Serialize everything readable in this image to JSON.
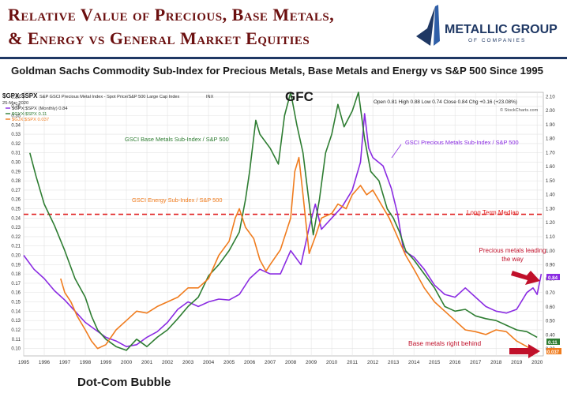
{
  "header": {
    "title_line1": "Relative Value of Precious, Base Metals,",
    "title_line2": "& Energy vs General Market Equities",
    "logo_name": "METALLIC GROUP",
    "logo_sub": "OF COMPANIES",
    "logo_icon": "metallic-group-logo-icon",
    "subtitle": "Goldman Sachs Commodity Sub-Index for Precious Metals, Base Metals and Energy vs S&P 500 Since 1995"
  },
  "chart_meta": {
    "symbol": "$GPX:$SPX",
    "symbol_desc": "S&P GSCI Precious Metal Index - Spot Price/S&P 500 Large Cap Index",
    "exchange": "INX",
    "date": "25-Mar-2020",
    "ohlc": "Open 0.81  High 0.88  Low 0.74  Close 0.84  Chg +0.16 (+23.08%)",
    "credit": "© StockCharts.com",
    "legend": [
      {
        "text": "$GPX:$SPX (Monthly) 0.84",
        "color": "#8a2be2"
      },
      {
        "text": "$GYX:$SPX 0.11",
        "color": "#2e7d32"
      },
      {
        "text": "$GJX:$SPX 0.037",
        "color": "#f07c1e"
      }
    ],
    "colors": {
      "precious": "#8a2be2",
      "base": "#2e7d32",
      "energy": "#f07c1e",
      "median": "#e02020",
      "arrow": "#c0102a",
      "title": "#6b0f0f",
      "navy": "#1f3864"
    }
  },
  "annotations": {
    "gfc": "GFC",
    "dotcom": "Dot-Com Bubble",
    "base_label": "GSCI Base Metals Sub-Index / S&P 500",
    "energy_label": "GSCI Energy Sub-Index / S&P 500",
    "precious_label": "GSCI Precious Metals Sub-Index / S&P 500",
    "median": "Long Term Median",
    "precious_lead": "Precious metals leading the way",
    "base_behind": "Base metals right behind",
    "last_precious": "0.84",
    "last_base": "0.11",
    "last_energy": "0.037"
  },
  "chart_data": {
    "type": "line",
    "x_labels": [
      "1995",
      "1996",
      "1997",
      "1998",
      "1999",
      "2000",
      "2001",
      "2002",
      "2003",
      "2004",
      "2005",
      "2006",
      "2007",
      "2008",
      "2009",
      "2010",
      "2011",
      "2012",
      "2013",
      "2014",
      "2015",
      "2016",
      "2017",
      "2018",
      "2019",
      "2020"
    ],
    "xlim": [
      1995,
      2020.3
    ],
    "left_axis": {
      "ticks": [
        0.1,
        0.11,
        0.12,
        0.13,
        0.14,
        0.15,
        0.16,
        0.17,
        0.18,
        0.19,
        0.2,
        0.21,
        0.22,
        0.23,
        0.24,
        0.25,
        0.26,
        0.27,
        0.28,
        0.29,
        0.3,
        0.31,
        0.32,
        0.33,
        0.34,
        0.35,
        0.36,
        0.37
      ]
    },
    "right_axis": {
      "ticks": [
        0.3,
        0.4,
        0.5,
        0.6,
        0.7,
        0.8,
        0.9,
        1.0,
        1.1,
        1.2,
        1.3,
        1.4,
        1.5,
        1.6,
        1.7,
        1.8,
        1.9,
        2.0,
        2.1
      ]
    },
    "grid": true,
    "median_level": 0.244,
    "series": [
      {
        "name": "$GPX:$SPX (Monthly)",
        "color": "#8a2be2",
        "points": [
          [
            1995.0,
            0.2
          ],
          [
            1995.5,
            0.185
          ],
          [
            1996.0,
            0.175
          ],
          [
            1996.5,
            0.162
          ],
          [
            1997.0,
            0.152
          ],
          [
            1997.5,
            0.14
          ],
          [
            1998.0,
            0.128
          ],
          [
            1998.5,
            0.12
          ],
          [
            1999.0,
            0.112
          ],
          [
            1999.5,
            0.108
          ],
          [
            2000.0,
            0.102
          ],
          [
            2000.5,
            0.104
          ],
          [
            2001.0,
            0.112
          ],
          [
            2001.5,
            0.118
          ],
          [
            2002.0,
            0.128
          ],
          [
            2002.5,
            0.142
          ],
          [
            2003.0,
            0.15
          ],
          [
            2003.5,
            0.145
          ],
          [
            2004.0,
            0.15
          ],
          [
            2004.5,
            0.153
          ],
          [
            2005.0,
            0.152
          ],
          [
            2005.5,
            0.158
          ],
          [
            2006.0,
            0.175
          ],
          [
            2006.5,
            0.185
          ],
          [
            2007.0,
            0.18
          ],
          [
            2007.5,
            0.18
          ],
          [
            2008.0,
            0.205
          ],
          [
            2008.5,
            0.19
          ],
          [
            2008.9,
            0.23
          ],
          [
            2009.2,
            0.255
          ],
          [
            2009.5,
            0.228
          ],
          [
            2010.0,
            0.24
          ],
          [
            2010.5,
            0.252
          ],
          [
            2011.0,
            0.27
          ],
          [
            2011.4,
            0.3
          ],
          [
            2011.6,
            0.352
          ],
          [
            2011.8,
            0.315
          ],
          [
            2012.0,
            0.305
          ],
          [
            2012.5,
            0.296
          ],
          [
            2012.9,
            0.272
          ],
          [
            2013.2,
            0.245
          ],
          [
            2013.5,
            0.205
          ],
          [
            2014.0,
            0.198
          ],
          [
            2014.5,
            0.185
          ],
          [
            2015.0,
            0.168
          ],
          [
            2015.5,
            0.158
          ],
          [
            2016.0,
            0.155
          ],
          [
            2016.5,
            0.165
          ],
          [
            2017.0,
            0.155
          ],
          [
            2017.5,
            0.145
          ],
          [
            2018.0,
            0.14
          ],
          [
            2018.5,
            0.138
          ],
          [
            2019.0,
            0.142
          ],
          [
            2019.5,
            0.16
          ],
          [
            2019.8,
            0.165
          ],
          [
            2020.0,
            0.158
          ],
          [
            2020.2,
            0.18
          ]
        ]
      },
      {
        "name": "$GYX:$SPX",
        "color": "#2e7d32",
        "points": [
          [
            1995.3,
            0.31
          ],
          [
            1995.6,
            0.285
          ],
          [
            1996.0,
            0.255
          ],
          [
            1996.5,
            0.232
          ],
          [
            1997.0,
            0.205
          ],
          [
            1997.5,
            0.175
          ],
          [
            1998.0,
            0.155
          ],
          [
            1998.3,
            0.135
          ],
          [
            1998.6,
            0.12
          ],
          [
            1999.0,
            0.11
          ],
          [
            1999.5,
            0.102
          ],
          [
            2000.0,
            0.098
          ],
          [
            2000.5,
            0.11
          ],
          [
            2001.0,
            0.102
          ],
          [
            2001.5,
            0.112
          ],
          [
            2002.0,
            0.12
          ],
          [
            2002.5,
            0.132
          ],
          [
            2003.0,
            0.145
          ],
          [
            2003.5,
            0.155
          ],
          [
            2004.0,
            0.178
          ],
          [
            2004.5,
            0.19
          ],
          [
            2005.0,
            0.205
          ],
          [
            2005.5,
            0.225
          ],
          [
            2005.8,
            0.26
          ],
          [
            2006.0,
            0.29
          ],
          [
            2006.3,
            0.345
          ],
          [
            2006.5,
            0.33
          ],
          [
            2007.0,
            0.315
          ],
          [
            2007.4,
            0.298
          ],
          [
            2007.7,
            0.35
          ],
          [
            2008.0,
            0.375
          ],
          [
            2008.3,
            0.34
          ],
          [
            2008.6,
            0.31
          ],
          [
            2008.9,
            0.256
          ],
          [
            2009.1,
            0.222
          ],
          [
            2009.4,
            0.26
          ],
          [
            2009.7,
            0.31
          ],
          [
            2010.0,
            0.33
          ],
          [
            2010.3,
            0.362
          ],
          [
            2010.6,
            0.338
          ],
          [
            2011.0,
            0.355
          ],
          [
            2011.3,
            0.375
          ],
          [
            2011.6,
            0.325
          ],
          [
            2011.9,
            0.29
          ],
          [
            2012.3,
            0.28
          ],
          [
            2012.7,
            0.25
          ],
          [
            2013.0,
            0.24
          ],
          [
            2013.3,
            0.225
          ],
          [
            2013.6,
            0.205
          ],
          [
            2014.0,
            0.195
          ],
          [
            2014.5,
            0.18
          ],
          [
            2015.0,
            0.165
          ],
          [
            2015.5,
            0.145
          ],
          [
            2016.0,
            0.14
          ],
          [
            2016.5,
            0.142
          ],
          [
            2017.0,
            0.135
          ],
          [
            2017.5,
            0.132
          ],
          [
            2018.0,
            0.13
          ],
          [
            2018.5,
            0.125
          ],
          [
            2019.0,
            0.12
          ],
          [
            2019.5,
            0.118
          ],
          [
            2020.0,
            0.112
          ]
        ]
      },
      {
        "name": "$GJX:$SPX",
        "color": "#f07c1e",
        "points": [
          [
            1996.8,
            0.175
          ],
          [
            1997.0,
            0.16
          ],
          [
            1997.3,
            0.15
          ],
          [
            1997.6,
            0.135
          ],
          [
            1998.0,
            0.12
          ],
          [
            1998.3,
            0.108
          ],
          [
            1998.6,
            0.1
          ],
          [
            1999.0,
            0.104
          ],
          [
            1999.5,
            0.12
          ],
          [
            2000.0,
            0.13
          ],
          [
            2000.5,
            0.14
          ],
          [
            2001.0,
            0.138
          ],
          [
            2001.5,
            0.145
          ],
          [
            2002.0,
            0.15
          ],
          [
            2002.5,
            0.155
          ],
          [
            2003.0,
            0.165
          ],
          [
            2003.5,
            0.165
          ],
          [
            2004.0,
            0.175
          ],
          [
            2004.5,
            0.2
          ],
          [
            2005.0,
            0.215
          ],
          [
            2005.3,
            0.24
          ],
          [
            2005.5,
            0.25
          ],
          [
            2005.8,
            0.23
          ],
          [
            2006.2,
            0.218
          ],
          [
            2006.5,
            0.195
          ],
          [
            2006.8,
            0.183
          ],
          [
            2007.0,
            0.19
          ],
          [
            2007.5,
            0.206
          ],
          [
            2008.0,
            0.24
          ],
          [
            2008.2,
            0.29
          ],
          [
            2008.4,
            0.305
          ],
          [
            2008.6,
            0.265
          ],
          [
            2008.9,
            0.202
          ],
          [
            2009.2,
            0.22
          ],
          [
            2009.5,
            0.24
          ],
          [
            2010.0,
            0.245
          ],
          [
            2010.3,
            0.255
          ],
          [
            2010.7,
            0.25
          ],
          [
            2011.0,
            0.265
          ],
          [
            2011.4,
            0.275
          ],
          [
            2011.7,
            0.265
          ],
          [
            2012.0,
            0.27
          ],
          [
            2012.4,
            0.255
          ],
          [
            2012.8,
            0.24
          ],
          [
            2013.2,
            0.22
          ],
          [
            2013.6,
            0.2
          ],
          [
            2014.0,
            0.185
          ],
          [
            2014.5,
            0.165
          ],
          [
            2015.0,
            0.15
          ],
          [
            2015.5,
            0.14
          ],
          [
            2016.0,
            0.13
          ],
          [
            2016.5,
            0.12
          ],
          [
            2017.0,
            0.118
          ],
          [
            2017.5,
            0.115
          ],
          [
            2018.0,
            0.12
          ],
          [
            2018.5,
            0.118
          ],
          [
            2019.0,
            0.108
          ],
          [
            2019.5,
            0.102
          ],
          [
            2020.0,
            0.095
          ]
        ]
      }
    ]
  }
}
